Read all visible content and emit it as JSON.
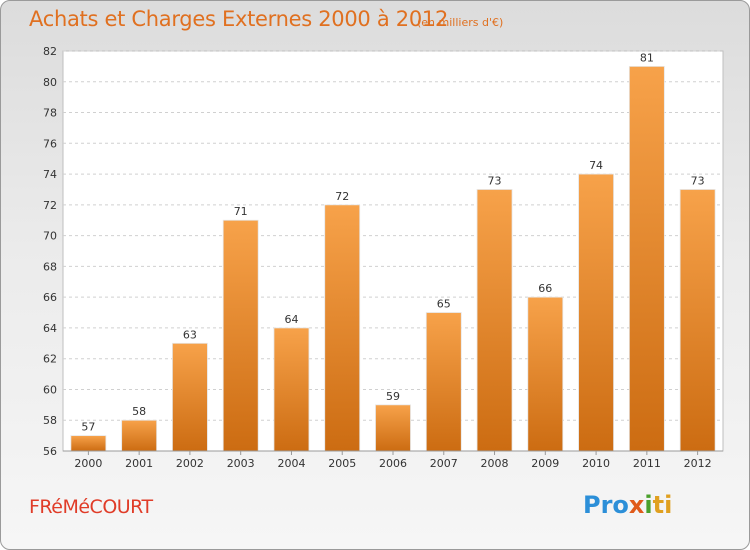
{
  "chart_data": {
    "type": "bar",
    "title": "Achats et Charges Externes 2000 à 2012",
    "subtitle": "(en milliers d'€)",
    "categories": [
      "2000",
      "2001",
      "2002",
      "2003",
      "2004",
      "2005",
      "2006",
      "2007",
      "2008",
      "2009",
      "2010",
      "2011",
      "2012"
    ],
    "values": [
      57,
      58,
      63,
      71,
      64,
      72,
      59,
      65,
      73,
      66,
      74,
      81,
      73
    ],
    "ylim": [
      56,
      82
    ],
    "yticks": [
      56,
      58,
      60,
      62,
      64,
      66,
      68,
      70,
      72,
      74,
      76,
      78,
      80,
      82
    ],
    "grid": true,
    "bar_color": "#f0922e",
    "bar_color_dark": "#c96a10"
  },
  "footer": {
    "town": "FRéMéCOURT",
    "logo_parts": [
      "Pro",
      "x",
      "i",
      "ti"
    ]
  }
}
